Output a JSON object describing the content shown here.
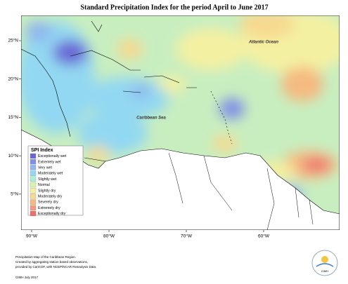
{
  "title": "Standard Precipitation Index for the period April to June 2017",
  "map": {
    "labels": [
      "Atlantic Ocean",
      "Caribbean Sea"
    ],
    "lat_ticks": [
      "25°N",
      "20°N",
      "15°N",
      "10°N",
      "5°N"
    ],
    "lon_ticks": [
      "90°W",
      "80°W",
      "70°W",
      "60°W"
    ]
  },
  "legend": {
    "title": "SPI Index",
    "items": [
      {
        "label": "Exceptionally wet",
        "color": "#6b66d6"
      },
      {
        "label": "Extremely wet",
        "color": "#7f8ee6"
      },
      {
        "label": "Very wet",
        "color": "#8fb6ef"
      },
      {
        "label": "Moderately wet",
        "color": "#93d8f2"
      },
      {
        "label": "Slightly wet",
        "color": "#aeeed4"
      },
      {
        "label": "Normal",
        "color": "#d9f2ac"
      },
      {
        "label": "Slightly dry",
        "color": "#f4f0a2"
      },
      {
        "label": "Moderately dry",
        "color": "#f7d98f"
      },
      {
        "label": "Severely dry",
        "color": "#f5ba80"
      },
      {
        "label": "Extremely dry",
        "color": "#f29a7a"
      },
      {
        "label": "Exceptionally dry",
        "color": "#ee6e6e"
      }
    ]
  },
  "footer": {
    "lines": [
      "Precipitation Map of the Caribbean Region.",
      "Created by aggregating station based observations,",
      "provided by CariCOF, with NCEP/NCAR Reanalysis Data."
    ],
    "date": "CIMH July 2017"
  },
  "logo": {
    "text": "CIMH"
  }
}
